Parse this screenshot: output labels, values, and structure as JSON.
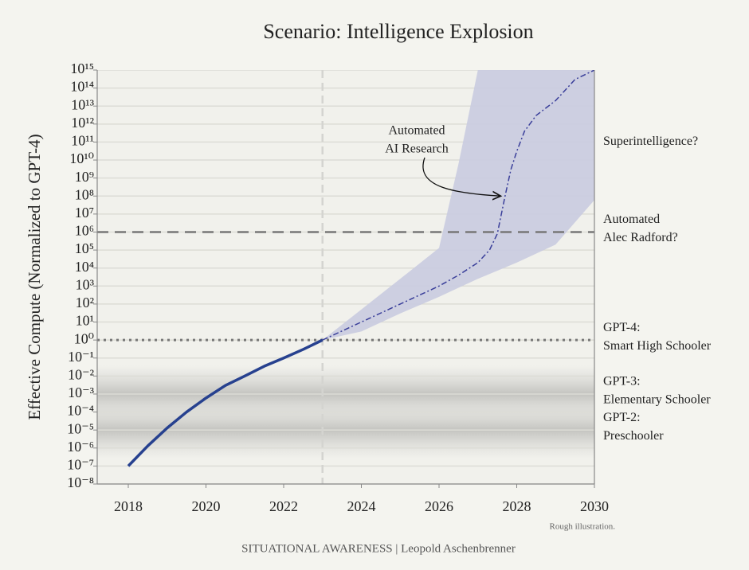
{
  "chart_data": {
    "type": "line",
    "title": "Scenario: Intelligence Explosion",
    "ylabel": "Effective Compute (Normalized to GPT-4)",
    "xlim": [
      2017.2,
      2030
    ],
    "xticks": [
      2018,
      2020,
      2022,
      2024,
      2026,
      2028,
      2030
    ],
    "yscale": "log",
    "ylim": [
      1e-08,
      1000000000000000.0
    ],
    "yticks": [
      {
        "value": 1e-08,
        "label": "10⁻⁸"
      },
      {
        "value": 1e-07,
        "label": "10⁻⁷"
      },
      {
        "value": 1e-06,
        "label": "10⁻⁶"
      },
      {
        "value": 1e-05,
        "label": "10⁻⁵"
      },
      {
        "value": 0.0001,
        "label": "10⁻⁴"
      },
      {
        "value": 0.001,
        "label": "10⁻³"
      },
      {
        "value": 0.01,
        "label": "10⁻²"
      },
      {
        "value": 0.1,
        "label": "10⁻¹"
      },
      {
        "value": 1,
        "label": "10⁰"
      },
      {
        "value": 10,
        "label": "10¹"
      },
      {
        "value": 100,
        "label": "10²"
      },
      {
        "value": 1000,
        "label": "10³"
      },
      {
        "value": 10000.0,
        "label": "10⁴"
      },
      {
        "value": 100000.0,
        "label": "10⁵"
      },
      {
        "value": 1000000.0,
        "label": "10⁶"
      },
      {
        "value": 10000000.0,
        "label": "10⁷"
      },
      {
        "value": 100000000.0,
        "label": "10⁸"
      },
      {
        "value": 1000000000.0,
        "label": "10⁹"
      },
      {
        "value": 10000000000.0,
        "label": "10¹⁰"
      },
      {
        "value": 100000000000.0,
        "label": "10¹¹"
      },
      {
        "value": 1000000000000.0,
        "label": "10¹²"
      },
      {
        "value": 10000000000000.0,
        "label": "10¹³"
      },
      {
        "value": 100000000000000.0,
        "label": "10¹⁴"
      },
      {
        "value": 1000000000000000.0,
        "label": "10¹⁵"
      }
    ],
    "grid": true,
    "series": [
      {
        "color": "#27418f",
        "style": "solid",
        "x": [
          2018,
          2018.5,
          2019,
          2019.5,
          2020,
          2020.5,
          2021,
          2021.5,
          2022,
          2022.5,
          2023
        ],
        "values": [
          1e-07,
          1.3e-06,
          1.3e-05,
          0.0001,
          0.0006,
          0.003,
          0.01,
          0.035,
          0.1,
          0.3,
          1
        ]
      },
      {
        "color": "#3a3f9a",
        "style": "dashdot",
        "x": [
          2023,
          2024,
          2025,
          2026,
          2026.5,
          2027,
          2027.3,
          2027.5,
          2027.7,
          2027.85,
          2028,
          2028.2,
          2028.5,
          2029,
          2029.5,
          2030
        ],
        "values": [
          1,
          10,
          100,
          1000,
          4000,
          20000,
          100000,
          800000,
          100000000,
          3000000000.0,
          30000000000.0,
          400000000000.0,
          3000000000000.0,
          20000000000000.0,
          300000000000000.0,
          1000000000000000.0
        ]
      }
    ],
    "band": {
      "color": "#c9cbe0",
      "x": [
        2023,
        2024,
        2025,
        2026,
        2026.5,
        2027,
        2028,
        2029,
        2030
      ],
      "upper": [
        1,
        50,
        2500,
        130000,
        6000000000.0,
        1000000000000000.0,
        1000000000000000.0,
        1000000000000000.0,
        1000000000000000.0
      ],
      "lower": [
        1,
        3,
        30,
        250,
        800,
        2500,
        20000,
        200000,
        60000000
      ]
    },
    "hlines": [
      {
        "value": 1000000,
        "style": "dashed"
      },
      {
        "value": 1,
        "style": "dotted"
      }
    ],
    "vline": 2023,
    "zones": [
      0.001,
      1e-05
    ],
    "level_labels": [
      {
        "lines": [
          "Superintelligence?"
        ],
        "level": 100000000000.0
      },
      {
        "lines": [
          "Automated",
          "Alec Radford?"
        ],
        "level": 1000000
      },
      {
        "lines": [
          "GPT-4:",
          "Smart High Schooler"
        ],
        "level": 1
      },
      {
        "lines": [
          "GPT-3:",
          "Elementary Schooler"
        ],
        "level": 0.001
      },
      {
        "lines": [
          "GPT-2:",
          "Preschooler"
        ],
        "level": 1e-05
      }
    ],
    "annotation": {
      "lines": [
        "Automated",
        "AI Research"
      ],
      "x": 2027.65,
      "y": 100000000
    },
    "note": "Rough illustration.",
    "credit": "SITUATIONAL AWARENESS | Leopold Aschenbrenner"
  }
}
